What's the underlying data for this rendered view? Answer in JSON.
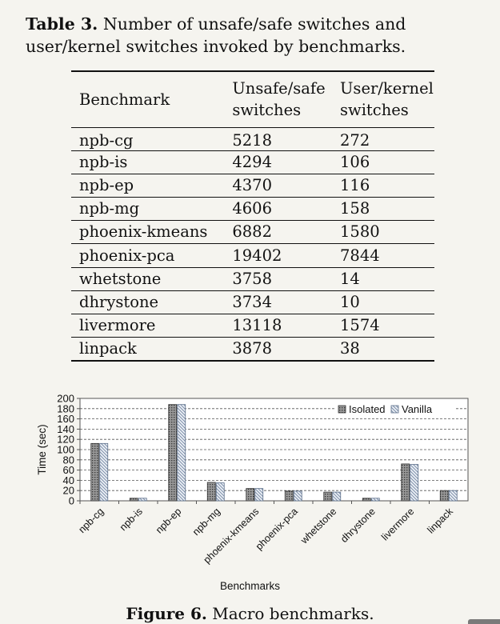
{
  "table": {
    "label": "Table 3.",
    "caption": "Number of unsafe/safe switches and user/kernel switches invoked by benchmarks.",
    "headers": [
      "Benchmark",
      "Unsafe/safe switches",
      "User/kernel switches"
    ],
    "rows": [
      [
        "npb-cg",
        "5218",
        "272"
      ],
      [
        "npb-is",
        "4294",
        "106"
      ],
      [
        "npb-ep",
        "4370",
        "116"
      ],
      [
        "npb-mg",
        "4606",
        "158"
      ],
      [
        "phoenix-kmeans",
        "6882",
        "1580"
      ],
      [
        "phoenix-pca",
        "19402",
        "7844"
      ],
      [
        "whetstone",
        "3758",
        "14"
      ],
      [
        "dhrystone",
        "3734",
        "10"
      ],
      [
        "livermore",
        "13118",
        "1574"
      ],
      [
        "linpack",
        "3878",
        "38"
      ]
    ]
  },
  "chart_data": {
    "type": "bar",
    "categories": [
      "npb-cg",
      "npb-is",
      "npb-ep",
      "npb-mg",
      "phoenix-kmeans",
      "phoenix-pca",
      "whetstone",
      "dhrystone",
      "livermore",
      "linpack"
    ],
    "series": [
      {
        "name": "Isolated",
        "values": [
          112,
          5,
          188,
          36,
          24,
          19,
          17,
          5,
          72,
          20
        ],
        "color": "#888888",
        "pattern": "dotted"
      },
      {
        "name": "Vanilla",
        "values": [
          112,
          5,
          188,
          35,
          24,
          19,
          17,
          5,
          71,
          20
        ],
        "color": "#e8eef6",
        "pattern": "hatched"
      }
    ],
    "xlabel": "Benchmarks",
    "ylabel": "Time (sec)",
    "ylim": [
      0,
      200
    ],
    "yticks": [
      "0",
      "20",
      "40",
      "60",
      "80",
      "100",
      "120",
      "140",
      "160",
      "180",
      "200"
    ],
    "grid": true,
    "legend": "top-right"
  },
  "figure": {
    "label": "Figure 6.",
    "caption": "Macro benchmarks."
  }
}
